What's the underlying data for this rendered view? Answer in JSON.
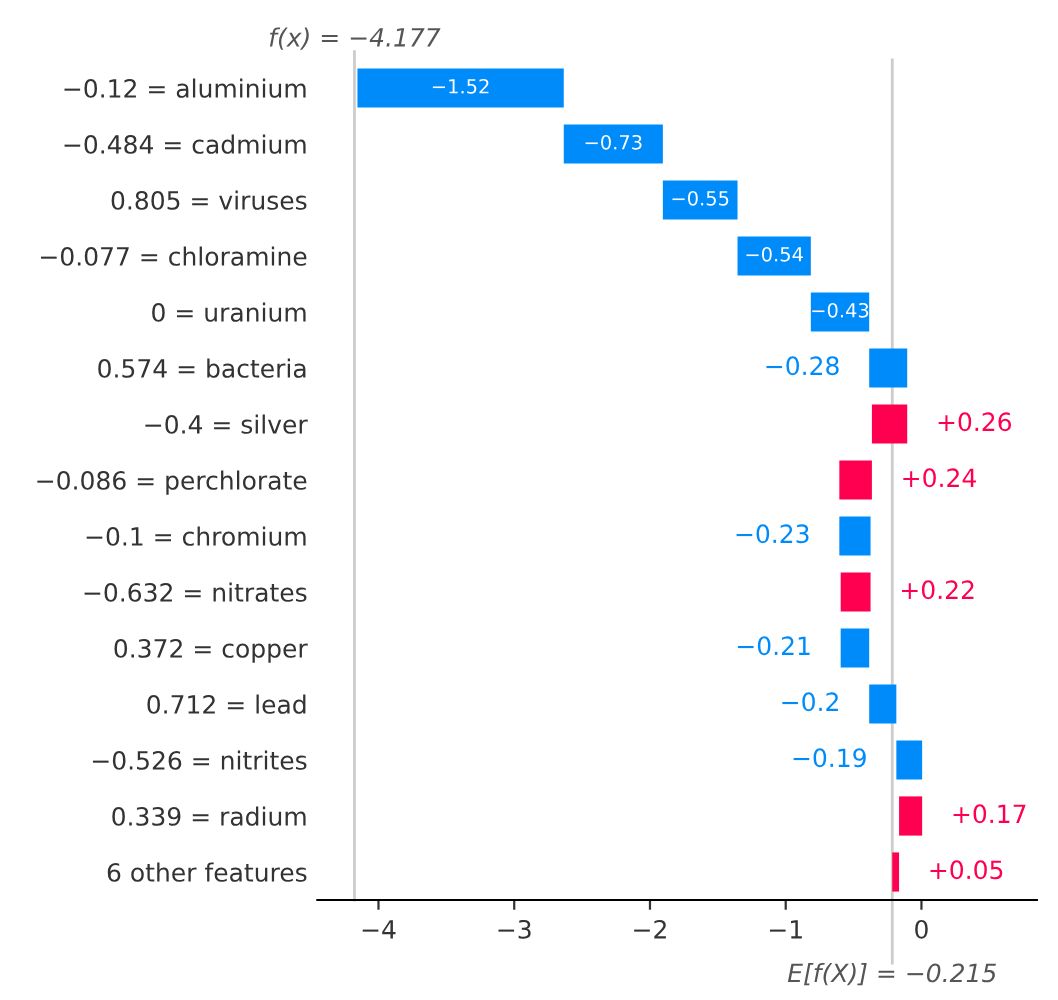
{
  "chart_data": {
    "type": "bar",
    "orientation": "horizontal",
    "categories": [
      "−0.12 = aluminium",
      "−0.484 = cadmium",
      "0.805 = viruses",
      "−0.077 = chloramine",
      "0 = uranium",
      "0.574 = bacteria",
      "−0.4 = silver",
      "−0.086 = perchlorate",
      "−0.1 = chromium",
      "−0.632 = nitrates",
      "0.372 = copper",
      "0.712 = lead",
      "−0.526 = nitrites",
      "0.339 = radium",
      "6 other features"
    ],
    "values": [
      -1.52,
      -0.73,
      -0.55,
      -0.54,
      -0.43,
      -0.28,
      0.26,
      0.24,
      -0.23,
      0.22,
      -0.21,
      -0.2,
      -0.19,
      0.17,
      0.05
    ],
    "base": [
      -2.635,
      -1.905,
      -1.355,
      -0.815,
      -0.385,
      -0.105,
      -0.365,
      -0.605,
      -0.375,
      -0.595,
      -0.385,
      -0.185,
      0.005,
      -0.165,
      -0.215
    ],
    "value_labels": [
      "−1.52",
      "−0.73",
      "−0.55",
      "−0.54",
      "−0.43",
      "−0.28",
      "+0.26",
      "+0.24",
      "−0.23",
      "+0.22",
      "−0.21",
      "−0.2",
      "−0.19",
      "+0.17",
      "+0.05"
    ],
    "colors": [
      "#008bfb",
      "#008bfb",
      "#008bfb",
      "#008bfb",
      "#008bfb",
      "#008bfb",
      "#ff0051",
      "#ff0051",
      "#008bfb",
      "#ff0051",
      "#008bfb",
      "#008bfb",
      "#008bfb",
      "#ff0051",
      "#ff0051"
    ],
    "xlim": [
      -4.45,
      0.85
    ],
    "xticks": [
      {
        "value": -4,
        "label": "−4"
      },
      {
        "value": -3,
        "label": "−3"
      },
      {
        "value": -2,
        "label": "−2"
      },
      {
        "value": -1,
        "label": "−1"
      },
      {
        "value": 0,
        "label": "0"
      }
    ],
    "ref_lines": [
      {
        "axis": "x",
        "value": -4.177,
        "label": "f(x) = −4.177",
        "color": "#cccccc"
      },
      {
        "axis": "x",
        "value": -0.215,
        "label": "E[f(X)] = −0.215",
        "color": "#cccccc"
      }
    ],
    "grid": false,
    "legend": false
  }
}
